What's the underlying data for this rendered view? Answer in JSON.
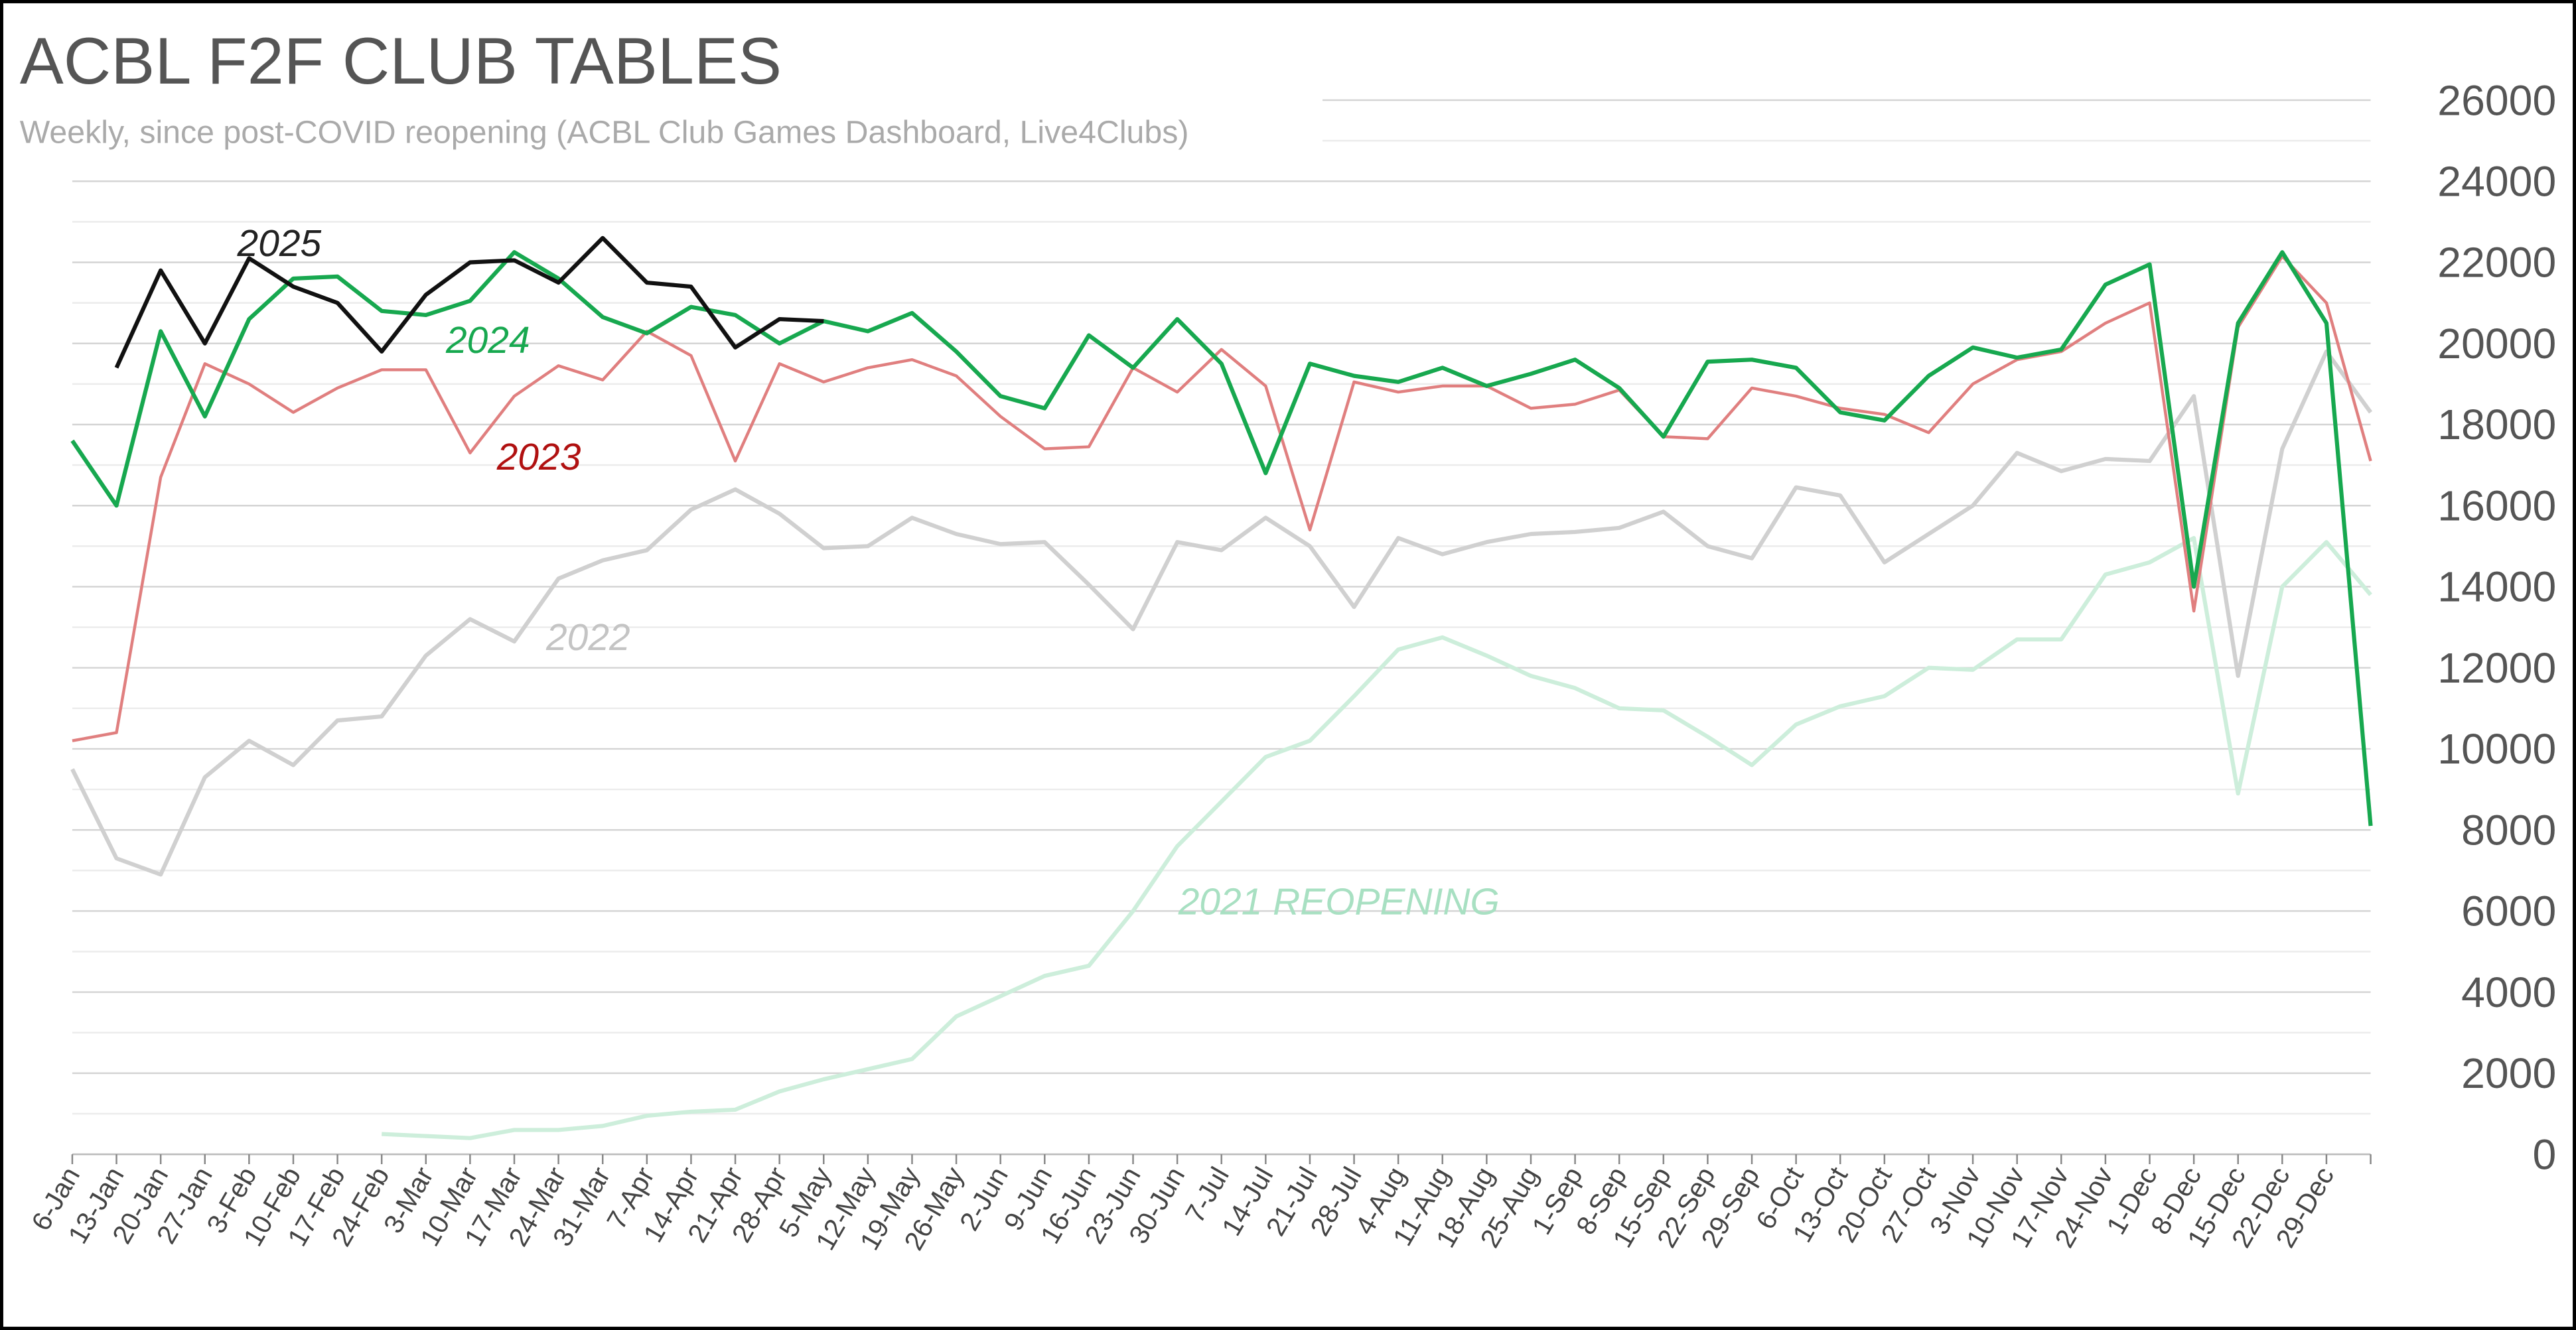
{
  "chart_data": {
    "type": "line",
    "title": "ACBL F2F CLUB TABLES",
    "subtitle": "Weekly, since post-COVID reopening (ACBL Club Games Dashboard, Live4Clubs)",
    "categories": [
      "6-Jan",
      "13-Jan",
      "20-Jan",
      "27-Jan",
      "3-Feb",
      "10-Feb",
      "17-Feb",
      "24-Feb",
      "3-Mar",
      "10-Mar",
      "17-Mar",
      "24-Mar",
      "31-Mar",
      "7-Apr",
      "14-Apr",
      "21-Apr",
      "28-Apr",
      "5-May",
      "12-May",
      "19-May",
      "26-May",
      "2-Jun",
      "9-Jun",
      "16-Jun",
      "23-Jun",
      "30-Jun",
      "7-Jul",
      "14-Jul",
      "21-Jul",
      "28-Jul",
      "4-Aug",
      "11-Aug",
      "18-Aug",
      "25-Aug",
      "1-Sep",
      "8-Sep",
      "15-Sep",
      "22-Sep",
      "29-Sep",
      "6-Oct",
      "13-Oct",
      "20-Oct",
      "27-Oct",
      "3-Nov",
      "10-Nov",
      "17-Nov",
      "24-Nov",
      "1-Dec",
      "8-Dec",
      "15-Dec",
      "22-Dec",
      "29-Dec",
      null
    ],
    "series": [
      {
        "name": "2021 REOPENING",
        "color": "#cdeedb",
        "label_color": "#a8e0c2",
        "width": 2.5,
        "values": [
          null,
          null,
          null,
          null,
          null,
          null,
          null,
          500,
          450,
          400,
          600,
          600,
          700,
          950,
          1050,
          1100,
          1550,
          1850,
          2100,
          2350,
          3400,
          3900,
          4400,
          4650,
          6000,
          7600,
          8700,
          9800,
          10200,
          11300,
          12450,
          12750,
          12300,
          11800,
          11500,
          11000,
          10950,
          10300,
          9600,
          10600,
          11050,
          11300,
          12000,
          11950,
          12700,
          12700,
          14300,
          14600,
          15200,
          8900,
          14000,
          15100,
          13800
        ]
      },
      {
        "name": "2022",
        "color": "#d0d0d0",
        "label_color": "#c4c4c4",
        "width": 2.5,
        "values": [
          9500,
          7300,
          6900,
          9300,
          10200,
          9600,
          10700,
          10800,
          12300,
          13200,
          12650,
          14200,
          14650,
          14900,
          15900,
          16400,
          15800,
          14950,
          15000,
          15700,
          15300,
          15050,
          15100,
          14050,
          12950,
          15100,
          14900,
          15700,
          15000,
          13500,
          15200,
          14800,
          15100,
          15300,
          15350,
          15450,
          15850,
          15000,
          14700,
          16450,
          16250,
          14600,
          15300,
          16000,
          17300,
          16850,
          17150,
          17100,
          18700,
          11800,
          17400,
          19800,
          18300
        ]
      },
      {
        "name": "2023",
        "color": "#e07f7f",
        "label_color": "#b01010",
        "width": 1.8,
        "values": [
          10200,
          10400,
          16700,
          19500,
          19000,
          18300,
          18900,
          19350,
          19350,
          17300,
          18700,
          19450,
          19100,
          20300,
          19700,
          17100,
          19500,
          19050,
          19400,
          19600,
          19200,
          18200,
          17400,
          17450,
          19400,
          18800,
          19850,
          18950,
          15400,
          19050,
          18800,
          18950,
          18950,
          18400,
          18500,
          18850,
          17700,
          17650,
          18900,
          18700,
          18400,
          18250,
          17800,
          19000,
          19600,
          19800,
          20500,
          21000,
          13400,
          20400,
          22150,
          21000,
          17100
        ]
      },
      {
        "name": "2024",
        "color": "#17a84f",
        "label_color": "#17a84f",
        "width": 2.5,
        "values": [
          17600,
          16000,
          20300,
          18200,
          20600,
          21600,
          21650,
          20800,
          20700,
          21050,
          22250,
          21600,
          20650,
          20250,
          20900,
          20700,
          20000,
          20550,
          20300,
          20750,
          19800,
          18700,
          18400,
          20200,
          19400,
          20600,
          19500,
          16800,
          19500,
          19200,
          19050,
          19400,
          18950,
          19250,
          19600,
          18900,
          17700,
          19550,
          19600,
          19400,
          18300,
          18100,
          19200,
          19900,
          19650,
          19850,
          21450,
          21950,
          14000,
          20500,
          22250,
          20500,
          8100
        ]
      },
      {
        "name": "2025",
        "color": "#111111",
        "label_color": "#222222",
        "width": 2.5,
        "values": [
          null,
          19400,
          21800,
          20000,
          22100,
          21400,
          21000,
          19800,
          21200,
          22000,
          22050,
          21500,
          22600,
          21500,
          21400,
          19900,
          20600,
          20550,
          null,
          null,
          null,
          null,
          null,
          null,
          null,
          null,
          null,
          null,
          null,
          null,
          null,
          null,
          null,
          null,
          null,
          null,
          null,
          null,
          null,
          null,
          null,
          null,
          null,
          null,
          null,
          null,
          null,
          null,
          null,
          null,
          null,
          null,
          null
        ]
      }
    ],
    "ylim": [
      0,
      26000
    ],
    "yticks": [
      0,
      2000,
      4000,
      6000,
      8000,
      10000,
      12000,
      14000,
      16000,
      18000,
      20000,
      22000,
      24000,
      26000
    ],
    "grid": true,
    "y_axis_side": "right"
  }
}
